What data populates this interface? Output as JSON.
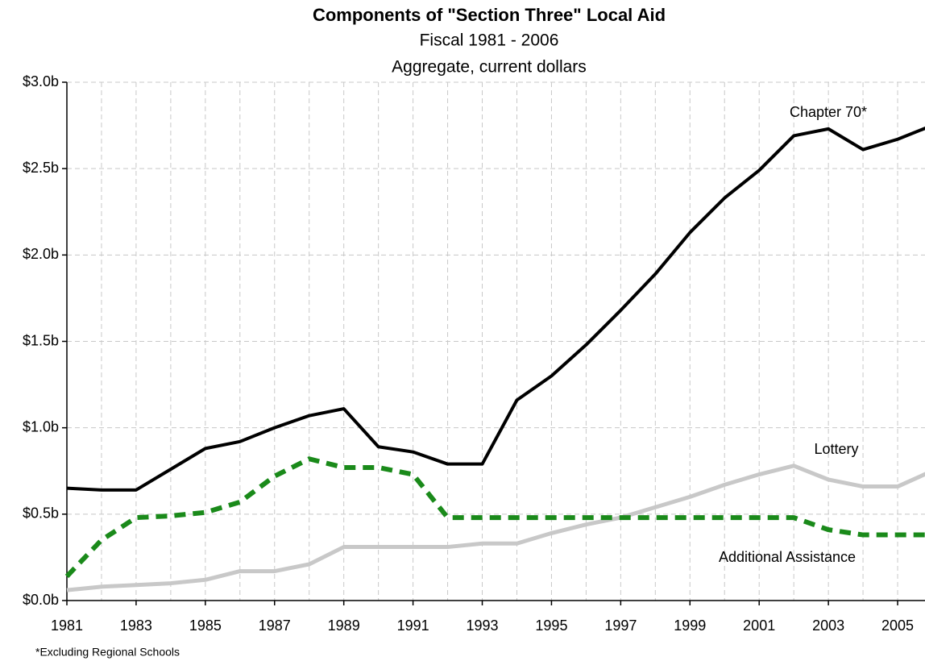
{
  "chart_data": {
    "type": "line",
    "title": "Components of \"Section Three\" Local Aid",
    "subtitle": [
      "Fiscal 1981 - 2006",
      "Aggregate, current dollars"
    ],
    "footnote": "*Excluding Regional Schools",
    "x": [
      1981,
      1982,
      1983,
      1984,
      1985,
      1986,
      1987,
      1988,
      1989,
      1990,
      1991,
      1992,
      1993,
      1994,
      1995,
      1996,
      1997,
      1998,
      1999,
      2000,
      2001,
      2002,
      2003,
      2004,
      2005,
      2006
    ],
    "series": [
      {
        "name": "Chapter 70*",
        "color": "#000000",
        "dash": false,
        "values": [
          0.65,
          0.64,
          0.64,
          0.76,
          0.88,
          0.92,
          1.0,
          1.07,
          1.11,
          0.89,
          0.86,
          0.79,
          0.79,
          1.16,
          1.3,
          1.48,
          1.68,
          1.89,
          2.13,
          2.33,
          2.49,
          2.69,
          2.73,
          2.61,
          2.67,
          2.75
        ]
      },
      {
        "name": "Lottery",
        "color": "#c8c8c8",
        "dash": false,
        "values": [
          0.06,
          0.08,
          0.09,
          0.1,
          0.12,
          0.17,
          0.17,
          0.21,
          0.31,
          0.31,
          0.31,
          0.31,
          0.33,
          0.33,
          0.39,
          0.44,
          0.48,
          0.54,
          0.6,
          0.67,
          0.73,
          0.78,
          0.7,
          0.66,
          0.66,
          0.75
        ]
      },
      {
        "name": "Additional Assistance",
        "color": "#1a8a1a",
        "dash": true,
        "values": [
          0.14,
          0.35,
          0.48,
          0.49,
          0.51,
          0.57,
          0.72,
          0.82,
          0.77,
          0.77,
          0.73,
          0.48,
          0.48,
          0.48,
          0.48,
          0.48,
          0.48,
          0.48,
          0.48,
          0.48,
          0.48,
          0.48,
          0.41,
          0.38,
          0.38,
          0.38
        ]
      }
    ],
    "xlim": [
      1981,
      2006
    ],
    "xticks": [
      1981,
      1983,
      1985,
      1987,
      1989,
      1991,
      1993,
      1995,
      1997,
      1999,
      2001,
      2003,
      2005
    ],
    "ylim": [
      0,
      3
    ],
    "yticks": [
      {
        "value": 0,
        "label": "$0.0b"
      },
      {
        "value": 0.5,
        "label": "$0.5b"
      },
      {
        "value": 1,
        "label": "$1.0b"
      },
      {
        "value": 1.5,
        "label": "$1.5b"
      },
      {
        "value": 2,
        "label": "$2.0b"
      },
      {
        "value": 2.5,
        "label": "$2.5b"
      },
      {
        "value": 3,
        "label": "$3.0b"
      }
    ],
    "grid": true
  }
}
